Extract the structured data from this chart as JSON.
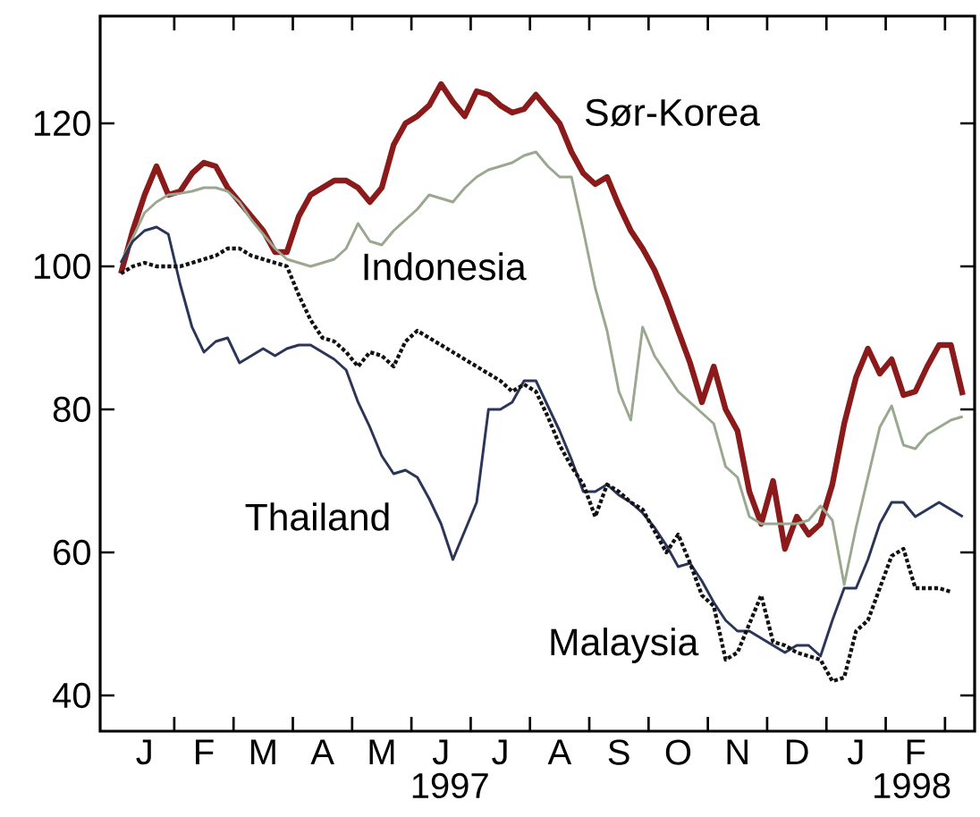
{
  "chart_data": {
    "type": "line",
    "categories": [
      null,
      null,
      "J",
      null,
      null,
      null,
      null,
      "F",
      null,
      null,
      null,
      null,
      "M",
      null,
      null,
      null,
      null,
      "A",
      null,
      null,
      null,
      null,
      "M",
      null,
      null,
      null,
      null,
      "J",
      null,
      null,
      null,
      null,
      "J",
      null,
      null,
      null,
      null,
      "A",
      null,
      null,
      null,
      null,
      "S",
      null,
      null,
      null,
      null,
      "O",
      null,
      null,
      null,
      null,
      "N",
      null,
      null,
      null,
      null,
      "D",
      null,
      null,
      null,
      null,
      "J",
      null,
      null,
      null,
      null,
      "F",
      null,
      null,
      null,
      null
    ],
    "ylim": [
      35,
      135
    ],
    "yticks": [
      40,
      60,
      80,
      100,
      120
    ],
    "grid": false,
    "legend": false,
    "annotations": [
      "1997",
      "1998"
    ],
    "series": [
      {
        "name": "Sør-Korea",
        "color": "#8b1a1a",
        "line_style": "solid",
        "values": [
          99,
          105,
          110,
          114,
          110,
          110.5,
          113,
          114.5,
          114,
          111,
          109,
          107,
          105,
          102,
          102,
          107,
          110,
          111,
          112,
          112,
          111,
          109,
          111,
          117,
          120,
          121,
          122.5,
          125.5,
          123,
          121,
          124.5,
          124,
          122.5,
          121.5,
          122,
          124,
          122,
          120,
          116,
          113,
          111.5,
          112.5,
          108.5,
          105,
          102.5,
          99.5,
          95.5,
          91,
          86.5,
          81,
          86,
          80,
          77,
          68.5,
          64,
          70,
          60.5,
          65,
          62.5,
          64,
          69.5,
          78,
          84.5,
          88.5,
          85,
          87,
          82,
          82.5,
          86,
          89,
          89,
          82
        ]
      },
      {
        "name": "Indonesia",
        "color": "#9aa88f",
        "line_style": "solid",
        "values": [
          100.5,
          104,
          107.5,
          109,
          110,
          110.2,
          110.5,
          111,
          111,
          110.5,
          109,
          106.5,
          104.5,
          102.5,
          101,
          100.5,
          100,
          100.5,
          101,
          102.5,
          106,
          103.5,
          103,
          105,
          106.5,
          108,
          110,
          109.5,
          109,
          111,
          112.5,
          113.5,
          114,
          114.5,
          115.5,
          116,
          114,
          112.5,
          112.5,
          105,
          97,
          91,
          82.5,
          78.5,
          91.5,
          87.5,
          85,
          82.5,
          81,
          79.5,
          78,
          72,
          70.5,
          65,
          64,
          64,
          64,
          64,
          64.5,
          66.5,
          64.5,
          55.5,
          63.5,
          70.5,
          77.5,
          80.5,
          75,
          74.5,
          76.5,
          77.5,
          78.5,
          79
        ]
      },
      {
        "name": "Thailand",
        "color": "#2a3558",
        "line_style": "solid",
        "values": [
          100.5,
          103.5,
          105,
          105.5,
          104.5,
          97.5,
          91.5,
          88,
          89.5,
          90,
          86.5,
          87.5,
          88.5,
          87.5,
          88.5,
          89,
          89,
          88,
          87,
          85.5,
          81,
          77.5,
          73.5,
          71,
          71.5,
          70.5,
          67.5,
          64,
          59,
          63,
          67,
          80,
          80,
          81,
          84,
          84,
          80.5,
          77,
          73,
          68.5,
          68.5,
          69.5,
          68,
          67,
          65.5,
          63.5,
          61,
          58,
          58.5,
          56,
          53,
          50.5,
          49,
          49,
          48,
          47,
          46,
          47,
          47,
          45.5,
          50.5,
          55,
          55,
          59,
          64,
          67,
          67,
          65,
          66,
          67,
          66,
          65
        ]
      },
      {
        "name": "Malaysia",
        "color": "#111111",
        "line_style": "dotted",
        "values": [
          99,
          100,
          100.5,
          100,
          100,
          100,
          100.5,
          101,
          101.5,
          102.5,
          102.5,
          101.5,
          101,
          100.5,
          100,
          96,
          92.5,
          90,
          89.5,
          88,
          86,
          88,
          87.5,
          86,
          89.5,
          91,
          90,
          89,
          88,
          87,
          86,
          85,
          84,
          82.5,
          83.5,
          82.5,
          79,
          75,
          72,
          69.5,
          65,
          69.5,
          68.5,
          67,
          66,
          63,
          60,
          62.5,
          58.5,
          54,
          52.5,
          45,
          46,
          50,
          54,
          47.5,
          47,
          46,
          45.5,
          45,
          42,
          42.5,
          49,
          50.5,
          55,
          59.5,
          60.5,
          55,
          55,
          55,
          54.5,
          null
        ]
      }
    ]
  }
}
